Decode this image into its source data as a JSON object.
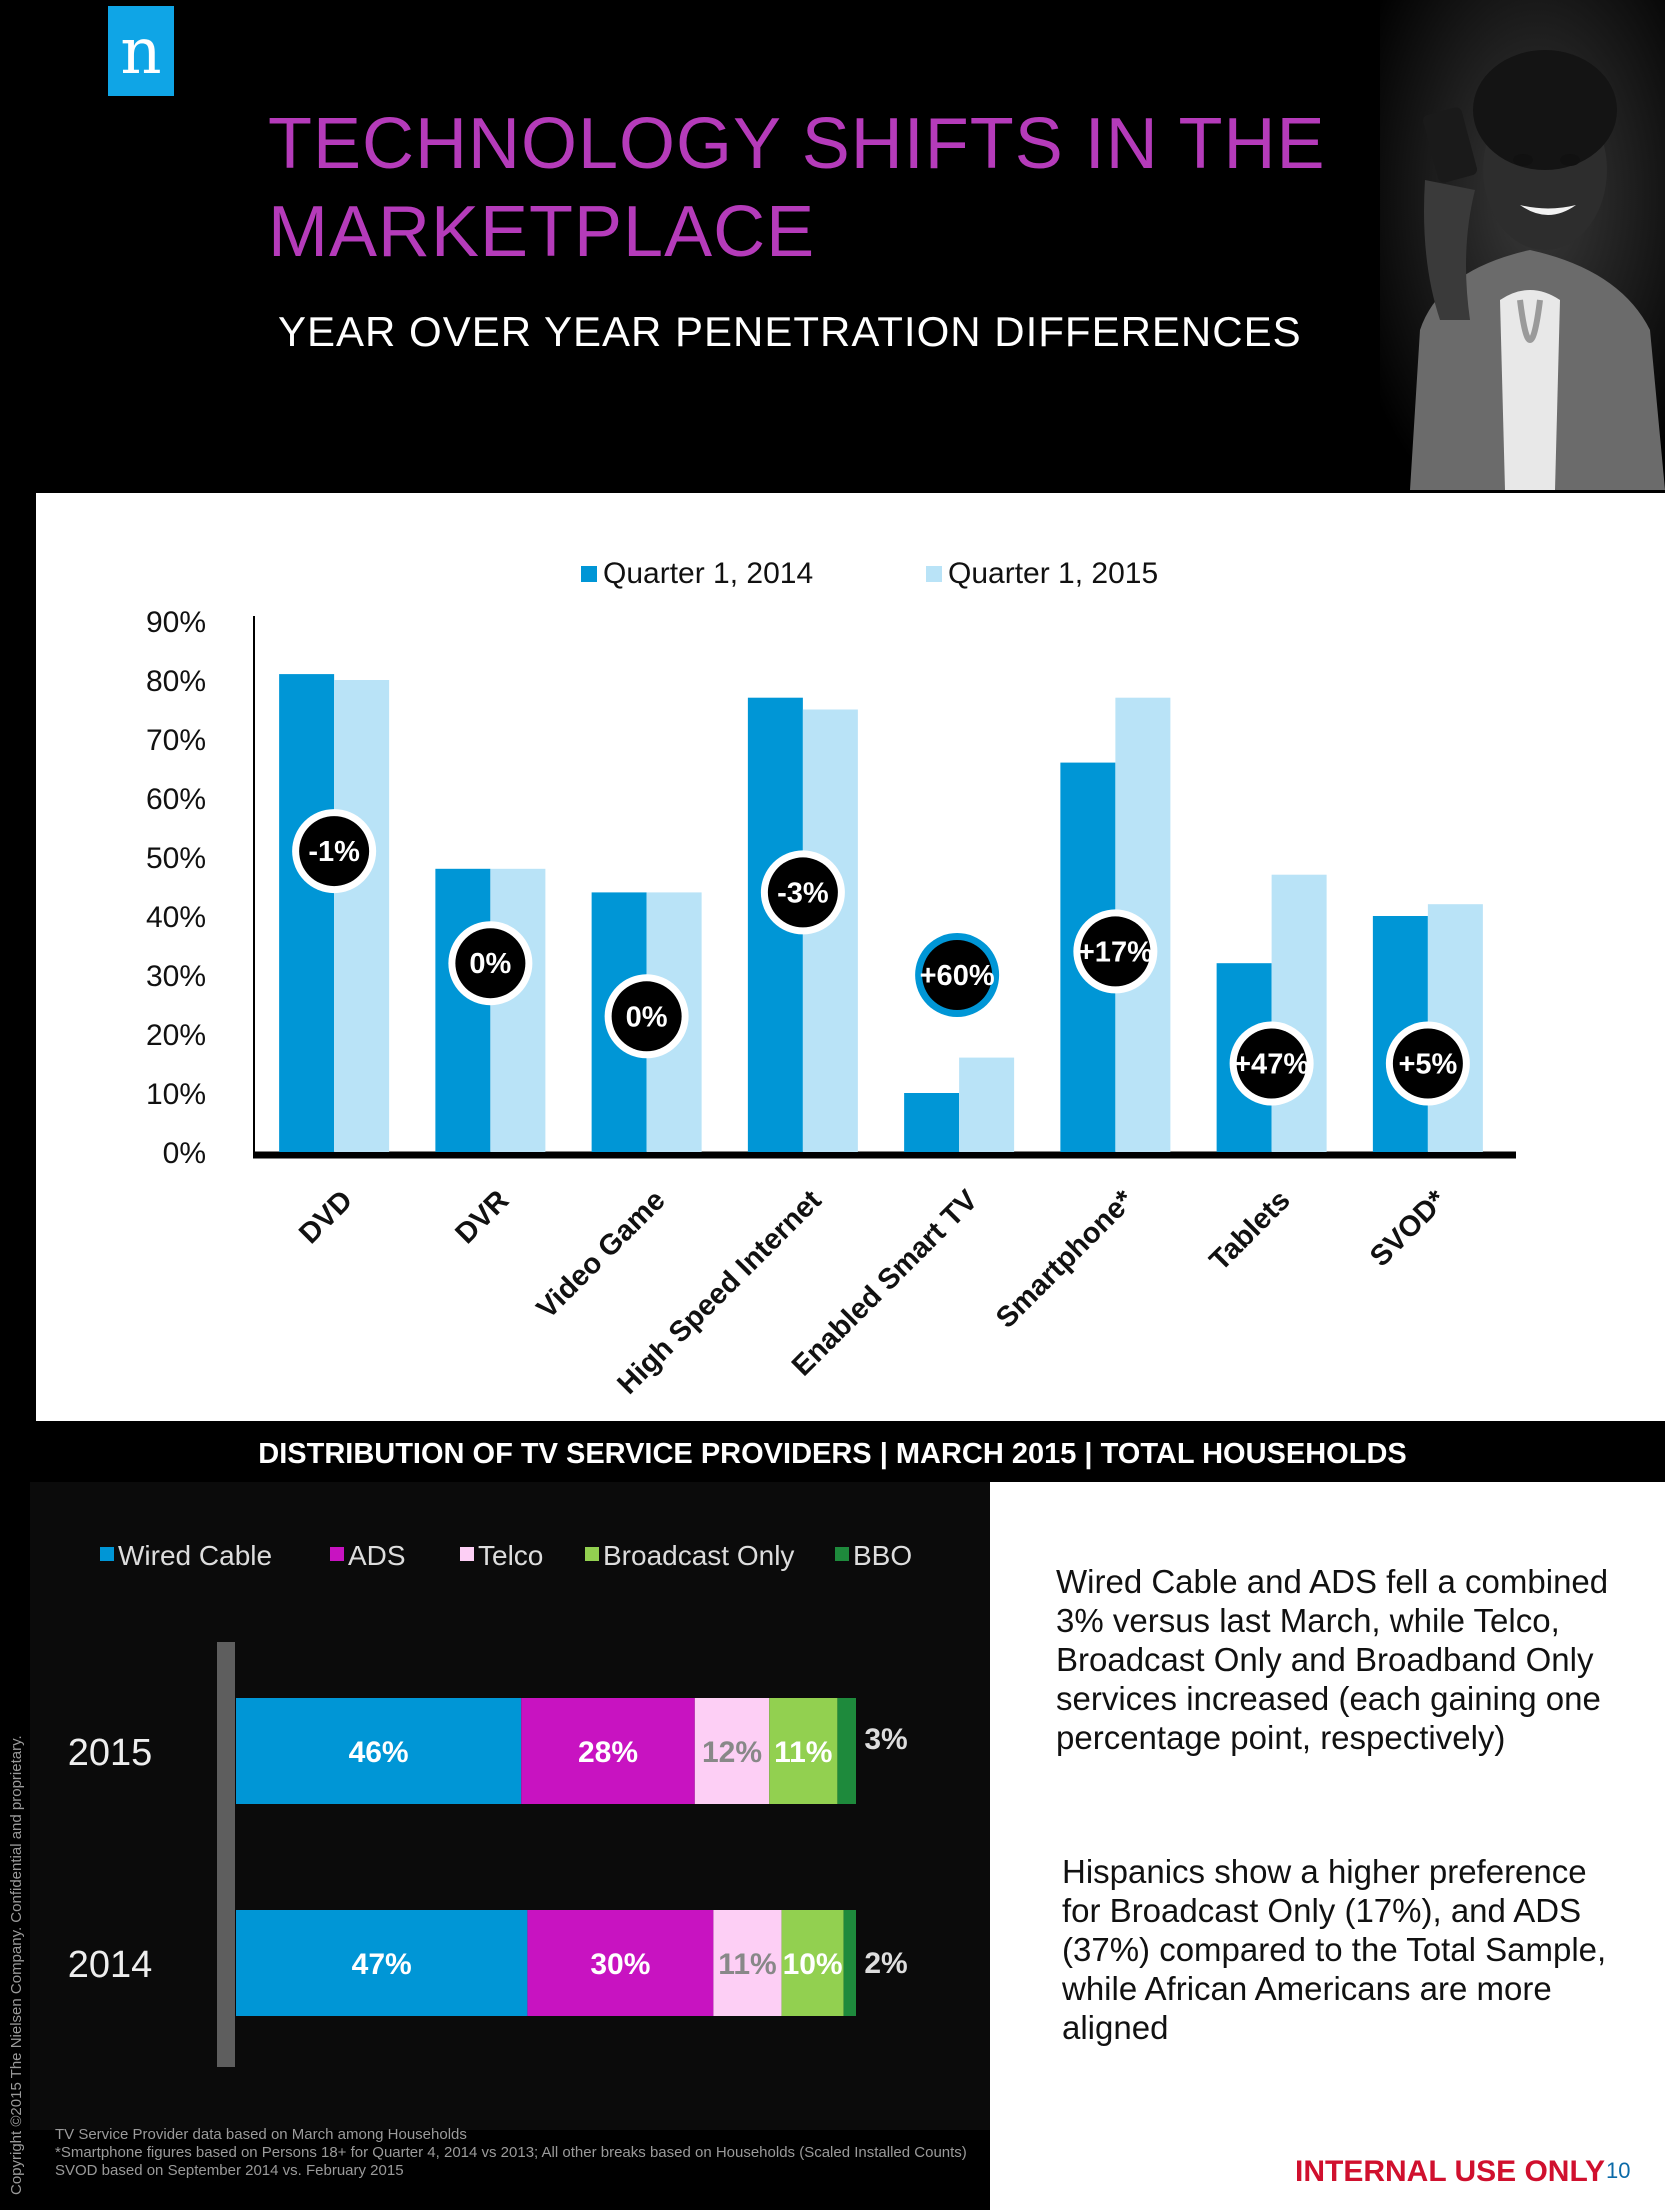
{
  "header": {
    "logo_letter": "n",
    "title_line1": "TECHNOLOGY SHIFTS IN THE",
    "title_line2": "MARKETPLACE",
    "subtitle": "YEAR OVER YEAR PENETRATION DIFFERENCES"
  },
  "colors": {
    "q1_2014": "#0096d6",
    "q1_2015": "#b9e3f7",
    "title": "#b53bba"
  },
  "band_title": "DISTRIBUTION OF TV SERVICE PROVIDERS | MARCH 2015 | TOTAL HOUSEHOLDS",
  "paragraph1": "Wired Cable and ADS fell a combined 3% versus last March, while Telco, Broadcast Only and Broadband Only services increased (each gaining one percentage point, respectively)",
  "paragraph2": "Hispanics show a higher preference for Broadcast Only (17%), and ADS (37%) compared to the Total Sample, while African Americans are more aligned",
  "footnotes": {
    "line1": "TV Service Provider data based on March among Households",
    "line2": "*Smartphone figures based on Persons 18+ for Quarter 4, 2014 vs 2013; All other breaks based on Households (Scaled Installed Counts)",
    "line3": "SVOD based on September 2014 vs. February 2015"
  },
  "copyright": "Copyright ©2015 The Nielsen Company. Confidential and proprietary.",
  "internal_label": "INTERNAL USE ONLY",
  "page_number": "10",
  "chart_data": [
    {
      "type": "bar",
      "categories": [
        "DVD",
        "DVR",
        "Video Game",
        "High Speed Internet",
        "Enabled Smart TV",
        "Smartphone*",
        "Tablets",
        "SVOD*"
      ],
      "series": [
        {
          "name": "Quarter 1, 2014",
          "color": "#0096d6",
          "values": [
            81,
            48,
            44,
            77,
            10,
            66,
            32,
            40
          ]
        },
        {
          "name": "Quarter 1, 2015",
          "color": "#b9e3f7",
          "values": [
            80,
            48,
            44,
            75,
            16,
            77,
            47,
            42
          ]
        }
      ],
      "change_labels": [
        "-1%",
        "0%",
        "0%",
        "-3%",
        "+60%",
        "+17%",
        "+47%",
        "+5%"
      ],
      "change_label_levels": [
        51,
        32,
        23,
        44,
        30,
        34,
        15,
        15
      ],
      "y_ticks": [
        "0%",
        "10%",
        "20%",
        "30%",
        "40%",
        "50%",
        "60%",
        "70%",
        "80%",
        "90%"
      ],
      "ylim": [
        0,
        90
      ],
      "legend_position": "top"
    },
    {
      "type": "bar",
      "orientation": "horizontal-stacked",
      "categories": [
        "2015",
        "2014"
      ],
      "series": [
        {
          "name": "Wired Cable",
          "color": "#0096d6",
          "values": [
            46,
            47
          ],
          "labels": [
            "46%",
            "47%"
          ]
        },
        {
          "name": "ADS",
          "color": "#c813c1",
          "values": [
            28,
            30
          ],
          "labels": [
            "28%",
            "30%"
          ]
        },
        {
          "name": "Telco",
          "color": "#fdcff5",
          "values": [
            12,
            11
          ],
          "labels": [
            "12%",
            "11%"
          ]
        },
        {
          "name": "Broadcast Only",
          "color": "#92d050",
          "values": [
            11,
            10
          ],
          "labels": [
            "11%",
            "10%"
          ]
        },
        {
          "name": "BBO",
          "color": "#1e8a3c",
          "values": [
            3,
            2
          ],
          "labels": [
            "3%",
            "2%"
          ]
        }
      ],
      "legend_position": "top"
    }
  ]
}
